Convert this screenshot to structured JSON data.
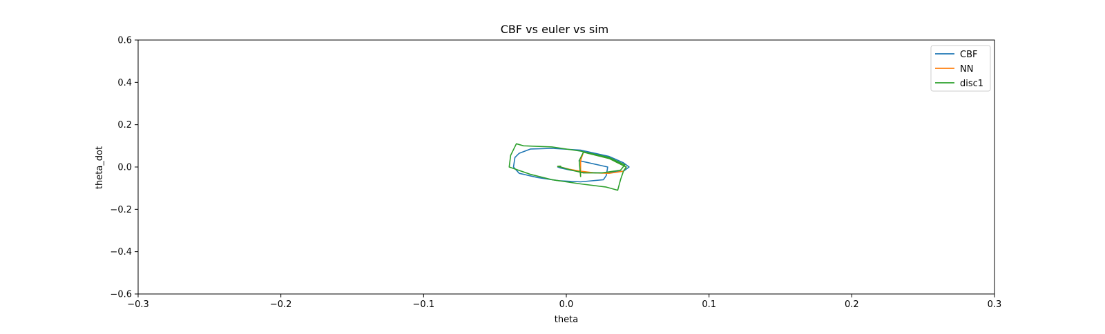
{
  "chart_data": {
    "type": "line",
    "title": "CBF vs euler vs sim",
    "xlabel": "theta",
    "ylabel": "theta_dot",
    "xlim": [
      -0.3,
      0.3
    ],
    "ylim": [
      -0.6,
      0.6
    ],
    "xticks": [
      -0.3,
      -0.2,
      -0.1,
      0.0,
      0.1,
      0.2,
      0.3
    ],
    "xtick_labels": [
      "−0.3",
      "−0.2",
      "−0.1",
      "0.0",
      "0.1",
      "0.2",
      "0.3"
    ],
    "yticks": [
      -0.6,
      -0.4,
      -0.2,
      0.0,
      0.2,
      0.4,
      0.6
    ],
    "ytick_labels": [
      "−0.6",
      "−0.4",
      "−0.2",
      "0.0",
      "0.2",
      "0.4",
      "0.6"
    ],
    "grid": false,
    "legend_position": "top-right",
    "series": [
      {
        "name": "CBF",
        "color": "#1f77b4",
        "x": [
          0.009,
          0.029,
          0.028,
          0.026,
          0.01,
          -0.005,
          -0.02,
          -0.033,
          -0.037,
          -0.036,
          -0.033,
          -0.025,
          -0.01,
          0.01,
          0.03,
          0.04,
          0.044,
          0.04,
          0.025,
          0.012,
          0.003,
          -0.004,
          -0.006,
          -0.004
        ],
        "y": [
          0.03,
          0.0,
          -0.04,
          -0.06,
          -0.07,
          -0.065,
          -0.05,
          -0.03,
          0.0,
          0.045,
          0.065,
          0.085,
          0.088,
          0.08,
          0.05,
          0.02,
          0.0,
          -0.02,
          -0.028,
          -0.025,
          -0.015,
          -0.005,
          0.0,
          0.003
        ]
      },
      {
        "name": "NN",
        "color": "#ff7f0e",
        "x": [
          0.01,
          0.01,
          0.012,
          0.03,
          0.042,
          0.04,
          0.03,
          0.02,
          0.01,
          0.002,
          -0.004,
          -0.006,
          -0.004
        ],
        "y": [
          -0.045,
          0.03,
          0.07,
          0.04,
          0.0,
          -0.02,
          -0.03,
          -0.028,
          -0.02,
          -0.01,
          0.0,
          0.003,
          0.004
        ]
      },
      {
        "name": "disc1",
        "color": "#2ca02c",
        "x": [
          0.01,
          0.009,
          0.012,
          0.03,
          0.042,
          0.04,
          0.038,
          0.036,
          0.028,
          0.01,
          -0.01,
          -0.025,
          -0.04,
          -0.039,
          -0.035,
          -0.03,
          -0.01,
          0.01,
          0.03,
          0.041,
          0.038,
          0.025,
          0.012,
          0.002,
          -0.004,
          -0.006,
          -0.004
        ],
        "y": [
          -0.045,
          0.03,
          0.07,
          0.04,
          0.0,
          -0.02,
          -0.06,
          -0.11,
          -0.095,
          -0.08,
          -0.06,
          -0.035,
          0.0,
          0.055,
          0.11,
          0.1,
          0.095,
          0.075,
          0.045,
          0.01,
          -0.015,
          -0.028,
          -0.028,
          -0.012,
          0.0,
          0.003,
          0.004
        ]
      }
    ]
  }
}
